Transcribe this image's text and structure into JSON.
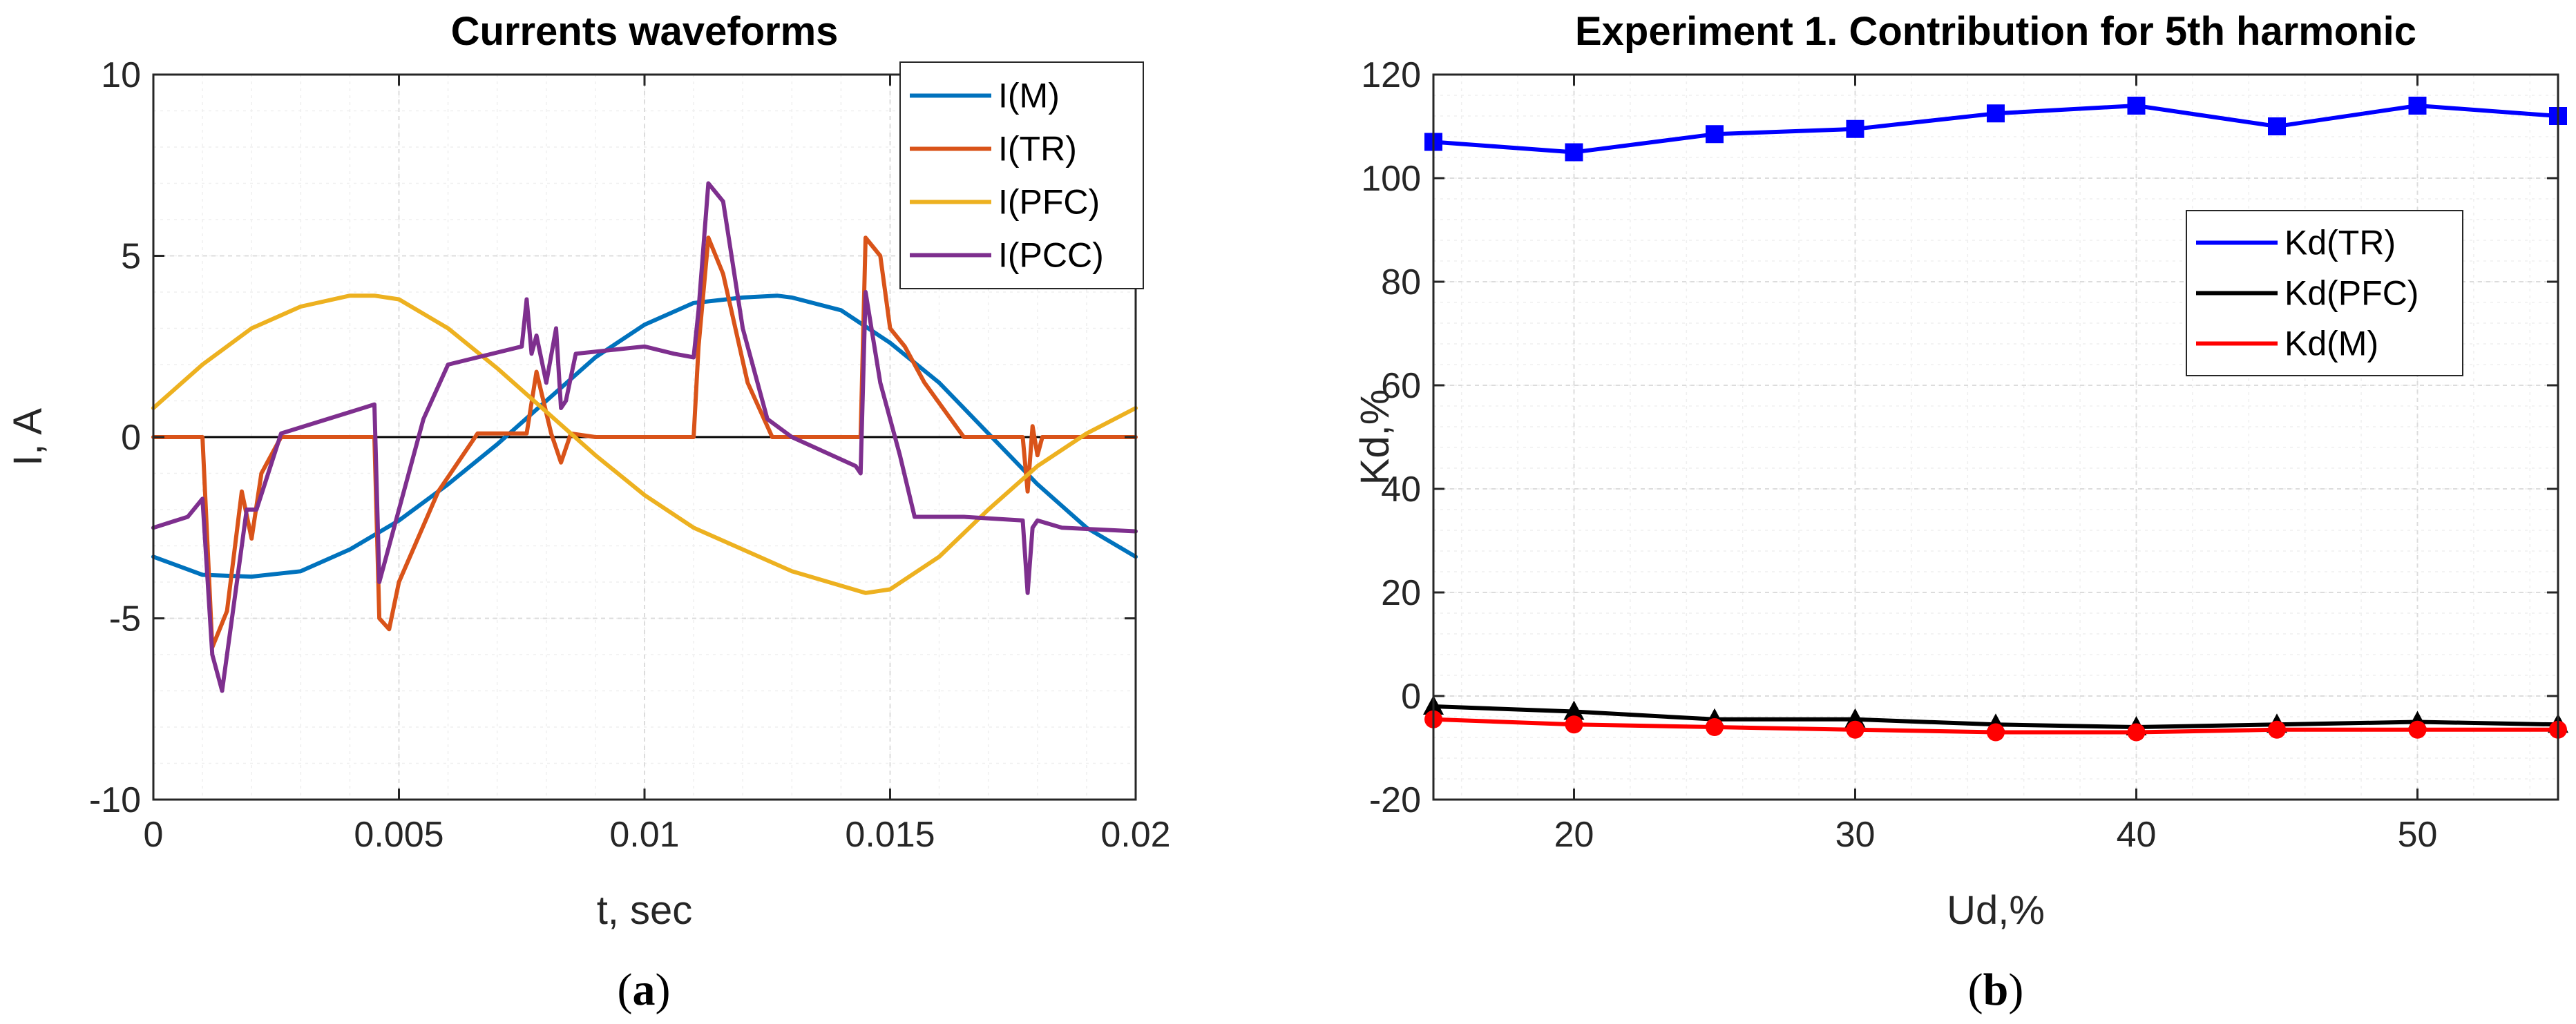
{
  "chart_data": [
    {
      "type": "line",
      "title": "Currents waveforms",
      "xlabel": "t, sec",
      "ylabel": "I, A",
      "xlim": [
        0,
        0.02
      ],
      "ylim": [
        -10,
        10
      ],
      "xticks": [
        0,
        0.005,
        0.01,
        0.015,
        0.02
      ],
      "xtick_labels": [
        "0",
        "0.005",
        "0.01",
        "0.015",
        "0.02"
      ],
      "yticks": [
        -10,
        -5,
        0,
        5,
        10
      ],
      "ytick_labels": [
        "-10",
        "-5",
        "0",
        "5",
        "10"
      ],
      "grid": true,
      "minor_grid": true,
      "legend_position": "top-right",
      "zero_line": true,
      "caption": "(a)",
      "caption_letter": "a",
      "series": [
        {
          "name": "I(M)",
          "color": "#0072BD",
          "x": [
            0,
            0.001,
            0.002,
            0.003,
            0.004,
            0.005,
            0.006,
            0.007,
            0.008,
            0.009,
            0.01,
            0.011,
            0.012,
            0.0127,
            0.013,
            0.014,
            0.015,
            0.016,
            0.017,
            0.018,
            0.019,
            0.02
          ],
          "y": [
            -3.3,
            -3.8,
            -3.85,
            -3.7,
            -3.1,
            -2.3,
            -1.3,
            -0.2,
            1.0,
            2.2,
            3.1,
            3.7,
            3.85,
            3.9,
            3.85,
            3.5,
            2.6,
            1.5,
            0.1,
            -1.3,
            -2.5,
            -3.3
          ]
        },
        {
          "name": "I(TR)",
          "color": "#D95319",
          "x": [
            0,
            0.001,
            0.0012,
            0.0015,
            0.0018,
            0.002,
            0.0022,
            0.0026,
            0.0045,
            0.0046,
            0.0048,
            0.005,
            0.0058,
            0.0066,
            0.0076,
            0.0078,
            0.0081,
            0.0083,
            0.0085,
            0.009,
            0.011,
            0.0111,
            0.0113,
            0.0116,
            0.0121,
            0.0126,
            0.0144,
            0.0145,
            0.0148,
            0.015,
            0.0153,
            0.0157,
            0.0165,
            0.0177,
            0.0178,
            0.0179,
            0.018,
            0.0181,
            0.02
          ],
          "y": [
            0,
            0,
            -5.8,
            -4.8,
            -1.5,
            -2.8,
            -1.0,
            0,
            0,
            -5.0,
            -5.3,
            -4.0,
            -1.5,
            0.1,
            0.1,
            1.8,
            0.1,
            -0.7,
            0.1,
            0,
            0,
            2.5,
            5.5,
            4.5,
            1.5,
            0,
            0,
            5.5,
            5.0,
            3.0,
            2.5,
            1.5,
            0,
            0,
            -1.5,
            0.3,
            -0.5,
            0,
            0
          ]
        },
        {
          "name": "I(PFC)",
          "color": "#EDB120",
          "x": [
            0,
            0.001,
            0.002,
            0.003,
            0.004,
            0.0045,
            0.005,
            0.006,
            0.007,
            0.008,
            0.009,
            0.01,
            0.011,
            0.012,
            0.013,
            0.014,
            0.0145,
            0.015,
            0.016,
            0.017,
            0.018,
            0.019,
            0.02
          ],
          "y": [
            0.8,
            2.0,
            3.0,
            3.6,
            3.9,
            3.9,
            3.8,
            3.0,
            1.9,
            0.7,
            -0.5,
            -1.6,
            -2.5,
            -3.1,
            -3.7,
            -4.1,
            -4.3,
            -4.2,
            -3.3,
            -2.0,
            -0.8,
            0.1,
            0.8
          ]
        },
        {
          "name": "I(PCC)",
          "color": "#7E2F8E",
          "x": [
            0,
            0.0007,
            0.001,
            0.0012,
            0.0014,
            0.0016,
            0.0019,
            0.0021,
            0.0026,
            0.0045,
            0.0046,
            0.0047,
            0.005,
            0.0055,
            0.006,
            0.0075,
            0.0076,
            0.0077,
            0.0078,
            0.008,
            0.0082,
            0.0083,
            0.0084,
            0.0086,
            0.01,
            0.0106,
            0.011,
            0.0111,
            0.0113,
            0.0116,
            0.012,
            0.0125,
            0.013,
            0.0143,
            0.0144,
            0.0145,
            0.0148,
            0.0152,
            0.0155,
            0.0165,
            0.0177,
            0.0178,
            0.0179,
            0.018,
            0.0185,
            0.02
          ],
          "y": [
            -2.5,
            -2.2,
            -1.7,
            -6.0,
            -7.0,
            -5.0,
            -2.0,
            -2.0,
            0.1,
            0.9,
            -4.0,
            -3.5,
            -2.0,
            0.5,
            2.0,
            2.5,
            3.8,
            2.3,
            2.8,
            1.5,
            3.0,
            0.8,
            1.0,
            2.3,
            2.5,
            2.3,
            2.2,
            3.5,
            7.0,
            6.5,
            3.0,
            0.5,
            0,
            -0.8,
            -1.0,
            4.0,
            1.5,
            -0.5,
            -2.2,
            -2.2,
            -2.3,
            -4.3,
            -2.5,
            -2.3,
            -2.5,
            -2.6
          ]
        }
      ]
    },
    {
      "type": "line",
      "title": "Experiment 1. Contribution for 5th harmonic",
      "xlabel": "Ud,%",
      "ylabel": "Kd,%",
      "xlim": [
        15,
        55
      ],
      "ylim": [
        -20,
        120
      ],
      "xticks": [
        20,
        30,
        40,
        50
      ],
      "xtick_labels": [
        "20",
        "30",
        "40",
        "50"
      ],
      "yticks": [
        -20,
        0,
        20,
        40,
        60,
        80,
        100,
        120
      ],
      "ytick_labels": [
        "-20",
        "0",
        "20",
        "40",
        "60",
        "80",
        "100",
        "120"
      ],
      "grid": true,
      "minor_grid": true,
      "legend_position": "upper-right",
      "caption": "(b)",
      "caption_letter": "b",
      "series": [
        {
          "name": "Kd(TR)",
          "color": "#0000FF",
          "marker": "square",
          "x": [
            15,
            20,
            25,
            30,
            35,
            40,
            45,
            50,
            55
          ],
          "y": [
            107,
            105,
            108.5,
            109.5,
            112.5,
            114,
            110,
            114,
            112
          ]
        },
        {
          "name": "Kd(PFC)",
          "color": "#000000",
          "marker": "triangle",
          "x": [
            15,
            20,
            25,
            30,
            35,
            40,
            45,
            50,
            55
          ],
          "y": [
            -2,
            -3,
            -4.5,
            -4.5,
            -5.5,
            -6,
            -5.5,
            -5,
            -5.5
          ]
        },
        {
          "name": "Kd(M)",
          "color": "#FF0000",
          "marker": "circle",
          "x": [
            15,
            20,
            25,
            30,
            35,
            40,
            45,
            50,
            55
          ],
          "y": [
            -4.5,
            -5.5,
            -6,
            -6.5,
            -7,
            -7,
            -6.5,
            -6.5,
            -6.5
          ]
        }
      ]
    }
  ]
}
